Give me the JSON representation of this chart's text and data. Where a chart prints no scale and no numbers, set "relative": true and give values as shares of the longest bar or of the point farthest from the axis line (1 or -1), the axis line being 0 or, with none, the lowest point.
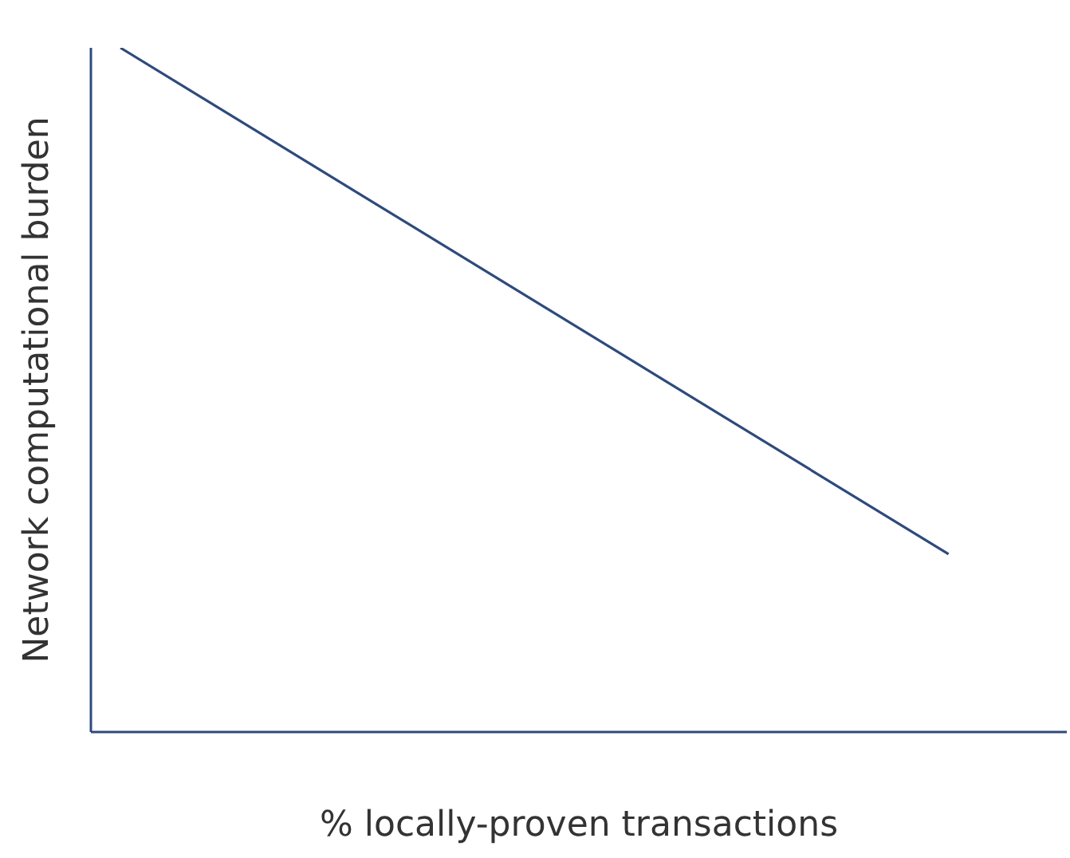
{
  "chart_data": {
    "type": "line",
    "relative": true,
    "xlabel": "% locally-proven transactions",
    "ylabel": "Network computational burden",
    "categories": [
      null,
      null,
      null,
      null,
      null,
      null,
      null,
      null,
      null,
      null,
      null,
      null,
      null,
      null,
      null,
      null,
      null,
      null,
      null,
      null,
      null,
      null,
      null,
      null,
      null,
      null,
      null,
      null,
      null,
      null,
      null,
      null,
      null,
      null
    ],
    "series": [
      {
        "color": "#2e4a7d",
        "values": [
          null,
          1,
          null,
          null,
          null,
          null,
          null,
          null,
          null,
          null,
          null,
          null,
          null,
          null,
          null,
          null,
          null,
          null,
          null,
          null,
          null,
          null,
          null,
          null,
          null,
          null,
          null,
          null,
          null,
          0.26,
          null,
          null,
          null,
          null
        ]
      }
    ],
    "grid": false,
    "legend": false,
    "marker": "none",
    "line_style": "solid"
  }
}
